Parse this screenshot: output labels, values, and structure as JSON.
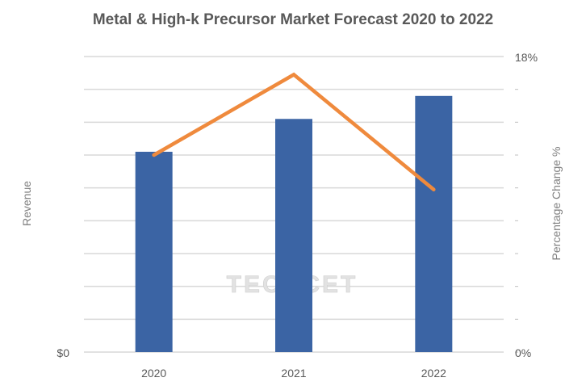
{
  "chart_data": {
    "type": "bar",
    "title": "Metal & High-k Precursor Market Forecast 2020 to 2022",
    "categories": [
      "2020",
      "2021",
      "2022"
    ],
    "ylabel": "Revenue",
    "y2label": "Percentage Change %",
    "y_tick_labels": [
      "$0"
    ],
    "y2_tick_labels": [
      "0%",
      "18%"
    ],
    "ylim": [
      0,
      9
    ],
    "y2lim": [
      0,
      18
    ],
    "grid": true,
    "series": [
      {
        "type": "bar",
        "axis": "left",
        "values": [
          6.1,
          7.1,
          7.8
        ],
        "color": "#3B64A4"
      },
      {
        "type": "line",
        "axis": "right",
        "values": [
          12.0,
          16.9,
          9.9
        ],
        "color": "#EF8A3D"
      }
    ]
  },
  "watermark": "TECHCET",
  "colors": {
    "gridline": "#D9D9D9",
    "text": "#595959",
    "watermark": "#E2E2E2"
  }
}
